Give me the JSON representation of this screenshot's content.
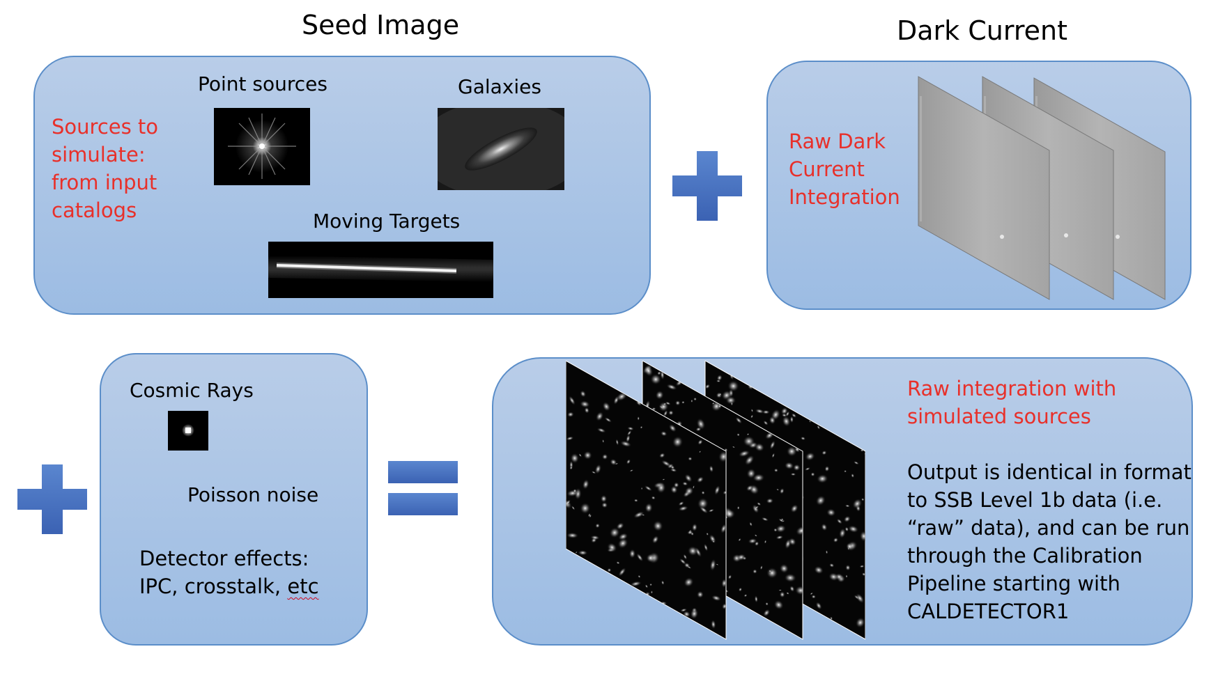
{
  "seed_image": {
    "title": "Seed Image",
    "sources_text": [
      "Sources to",
      "simulate:",
      "from input",
      "catalogs"
    ],
    "point_sources_label": "Point sources",
    "galaxies_label": "Galaxies",
    "moving_targets_label": "Moving Targets"
  },
  "dark_current": {
    "title": "Dark Current",
    "label_lines": [
      "Raw Dark",
      "Current",
      "Integration"
    ]
  },
  "effects": {
    "cosmic_rays_label": "Cosmic Rays",
    "poisson_label": "Poisson noise",
    "detector_line1": "Detector effects:",
    "detector_line2_a": "IPC, crosstalk, ",
    "detector_line2_b": "etc"
  },
  "output": {
    "red_lines": [
      "Raw integration with",
      "simulated sources"
    ],
    "desc_lines": [
      "Output is identical in format",
      "to SSB Level 1b data (i.e.",
      "“raw” data), and can be run",
      "through the Calibration",
      "Pipeline starting with",
      "CALDETECTOR1"
    ]
  },
  "colors": {
    "panel_fill": "#a9c4e6",
    "panel_border": "#5b8ec9",
    "red_text": "#e8302a",
    "operator_blue": "#4a73c0"
  },
  "icons": {
    "plus_top": "plus-icon",
    "plus_left": "plus-icon",
    "equals": "equals-icon"
  }
}
